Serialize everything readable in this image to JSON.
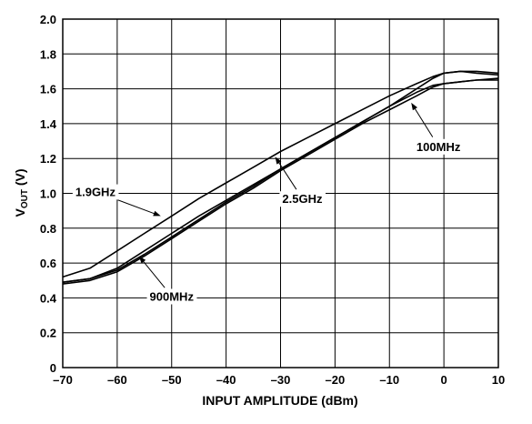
{
  "chart_data": {
    "type": "line",
    "xlabel": "INPUT AMPLITUDE (dBm)",
    "ylabel": "V_OUT (V)",
    "ylabel_main": "V",
    "ylabel_sub": "OUT",
    "ylabel_unit": " (V)",
    "xlim": [
      -70,
      10
    ],
    "ylim": [
      0,
      2.0
    ],
    "grid": true,
    "x_ticks": [
      -70,
      -60,
      -50,
      -40,
      -30,
      -20,
      -10,
      0,
      10
    ],
    "x_tick_labels": [
      "–70",
      "–60",
      "–50",
      "–40",
      "–30",
      "–20",
      "–10",
      "0",
      "10"
    ],
    "y_ticks": [
      0,
      0.2,
      0.4,
      0.6,
      0.8,
      1.0,
      1.2,
      1.4,
      1.6,
      1.8,
      2.0
    ],
    "y_tick_labels": [
      "0",
      "0.2",
      "0.4",
      "0.6",
      "0.8",
      "1.0",
      "1.2",
      "1.4",
      "1.6",
      "1.8",
      "2.0"
    ],
    "series": [
      {
        "name": "1.9GHz",
        "x": [
          -70,
          -65,
          -60,
          -55,
          -50,
          -45,
          -40,
          -35,
          -30,
          -25,
          -20,
          -15,
          -10,
          -5,
          -2,
          0,
          3,
          6,
          10
        ],
        "y": [
          0.52,
          0.57,
          0.67,
          0.77,
          0.87,
          0.97,
          1.06,
          1.15,
          1.24,
          1.32,
          1.4,
          1.48,
          1.56,
          1.63,
          1.67,
          1.69,
          1.7,
          1.69,
          1.68
        ]
      },
      {
        "name": "2.5GHz",
        "x": [
          -70,
          -65,
          -60,
          -55,
          -50,
          -45,
          -40,
          -35,
          -30,
          -25,
          -20,
          -15,
          -10,
          -5,
          -2,
          0,
          3,
          6,
          10
        ],
        "y": [
          0.49,
          0.51,
          0.57,
          0.67,
          0.77,
          0.87,
          0.96,
          1.05,
          1.14,
          1.23,
          1.32,
          1.41,
          1.5,
          1.6,
          1.66,
          1.69,
          1.7,
          1.7,
          1.69
        ]
      },
      {
        "name": "100MHz",
        "x": [
          -70,
          -65,
          -60,
          -55,
          -50,
          -45,
          -40,
          -35,
          -30,
          -25,
          -20,
          -15,
          -10,
          -5,
          -2,
          0,
          3,
          6,
          10
        ],
        "y": [
          0.48,
          0.5,
          0.55,
          0.64,
          0.74,
          0.84,
          0.94,
          1.03,
          1.13,
          1.22,
          1.31,
          1.4,
          1.48,
          1.56,
          1.61,
          1.63,
          1.64,
          1.65,
          1.65
        ]
      },
      {
        "name": "900MHz",
        "x": [
          -70,
          -65,
          -60,
          -55,
          -50,
          -45,
          -40,
          -35,
          -30,
          -25,
          -20,
          -15,
          -10,
          -5,
          -2,
          0,
          3,
          6,
          10
        ],
        "y": [
          0.49,
          0.51,
          0.56,
          0.65,
          0.75,
          0.85,
          0.95,
          1.04,
          1.14,
          1.23,
          1.32,
          1.41,
          1.5,
          1.58,
          1.62,
          1.63,
          1.64,
          1.65,
          1.66
        ]
      }
    ],
    "annotations": [
      {
        "text": "1.9GHz",
        "label_x": -64,
        "label_y": 1.01,
        "arrow_x": -52,
        "arrow_y": 0.87
      },
      {
        "text": "2.5GHz",
        "label_x": -26,
        "label_y": 0.97,
        "arrow_x": -31,
        "arrow_y": 1.21
      },
      {
        "text": "100MHz",
        "label_x": -1,
        "label_y": 1.27,
        "arrow_x": -6,
        "arrow_y": 1.52
      },
      {
        "text": "900MHz",
        "label_x": -50,
        "label_y": 0.41,
        "arrow_x": -56,
        "arrow_y": 0.64
      }
    ]
  }
}
